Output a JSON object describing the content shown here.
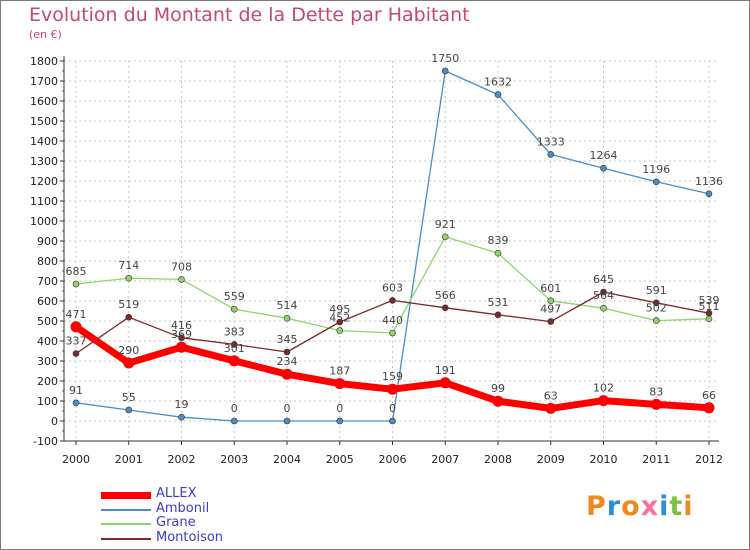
{
  "title": "Evolution du Montant de la Dette par Habitant",
  "subtitle": "(en €)",
  "logo": {
    "text": "Proxiti",
    "colors": [
      "#f08a1c",
      "#2e8fd8",
      "#f08a1c",
      "#ff6fa0",
      "#2e8fd8",
      "#7cc242",
      "#f08a1c"
    ]
  },
  "chart_data": {
    "type": "line",
    "title": "Evolution du Montant de la Dette par Habitant",
    "subtitle": "(en €)",
    "xlabel": "",
    "ylabel": "",
    "x": [
      "2000",
      "2001",
      "2002",
      "2003",
      "2004",
      "2005",
      "2006",
      "2007",
      "2008",
      "2009",
      "2010",
      "2011",
      "2012"
    ],
    "ylim": [
      -100,
      1800
    ],
    "yticks": [
      -100,
      0,
      100,
      200,
      300,
      400,
      500,
      600,
      700,
      800,
      900,
      1000,
      1100,
      1200,
      1300,
      1400,
      1500,
      1600,
      1700,
      1800
    ],
    "grid": true,
    "legend_position": "bottom-left",
    "series": [
      {
        "name": "ALLEX",
        "color": "#ff0000",
        "bold": true,
        "values": [
          471,
          290,
          369,
          301,
          234,
          187,
          159,
          191,
          99,
          63,
          102,
          83,
          66
        ],
        "labels": [
          "471",
          "290",
          "369",
          "301",
          "234",
          "187",
          "159",
          "191",
          "99",
          "63",
          "102",
          "83",
          "66"
        ]
      },
      {
        "name": "Ambonil",
        "color": "#4a8dc8",
        "bold": false,
        "values": [
          91,
          55,
          19,
          0,
          0,
          0,
          0,
          1750,
          1632,
          1333,
          1264,
          1196,
          1136
        ],
        "labels": [
          "91",
          "55",
          "19",
          "0",
          "0",
          "0",
          "0",
          "1750",
          "1632",
          "1333",
          "1264",
          "1196",
          "1136"
        ]
      },
      {
        "name": "Grane",
        "color": "#8fd66a",
        "bold": false,
        "values": [
          685,
          714,
          708,
          559,
          514,
          452,
          440,
          921,
          839,
          601,
          564,
          502,
          511
        ],
        "labels": [
          "685",
          "714",
          "708",
          "559",
          "514",
          "452",
          "440",
          "921",
          "839",
          "601",
          "564",
          "502",
          "511"
        ]
      },
      {
        "name": "Montoison",
        "color": "#7a2b2b",
        "bold": false,
        "values": [
          337,
          519,
          416,
          383,
          345,
          495,
          603,
          566,
          531,
          497,
          645,
          591,
          539
        ],
        "labels": [
          "337",
          "519",
          "416",
          "383",
          "345",
          "495",
          "603",
          "566",
          "531",
          "497",
          "645",
          "591",
          "539"
        ]
      }
    ]
  }
}
